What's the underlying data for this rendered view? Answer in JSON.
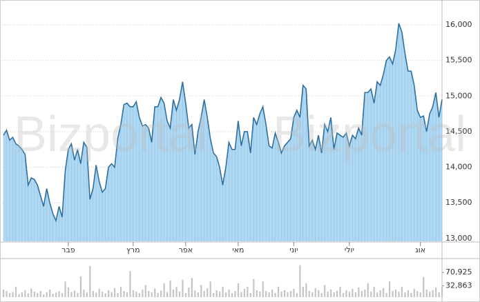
{
  "chart_data": {
    "type": "area",
    "watermark": "Bizportal",
    "values": [
      14450,
      14520,
      14380,
      14420,
      14330,
      14300,
      14250,
      14180,
      13750,
      13850,
      13830,
      13750,
      13600,
      13450,
      13700,
      13500,
      13350,
      13250,
      13450,
      13300,
      13950,
      14250,
      14330,
      14100,
      14250,
      14050,
      14350,
      14280,
      13550,
      13700,
      14030,
      13800,
      13650,
      13700,
      14000,
      14050,
      14000,
      14400,
      14600,
      14880,
      14900,
      14850,
      14850,
      14920,
      14700,
      14580,
      14600,
      14550,
      14350,
      14850,
      14850,
      14980,
      14900,
      14650,
      14550,
      14950,
      14800,
      14950,
      15200,
      14900,
      14550,
      14600,
      14180,
      14500,
      14700,
      14950,
      14700,
      14400,
      14200,
      14150,
      14000,
      13750,
      14000,
      14350,
      14250,
      14250,
      14650,
      14300,
      14500,
      14500,
      14200,
      14700,
      14600,
      14750,
      14850,
      14600,
      14300,
      14270,
      14480,
      14350,
      14200,
      14300,
      14350,
      14400,
      14700,
      14800,
      14700,
      15150,
      15100,
      14300,
      14380,
      14250,
      14450,
      14200,
      14600,
      14500,
      14700,
      14250,
      14480,
      14450,
      14420,
      14480,
      14300,
      14450,
      14400,
      14550,
      14450,
      15050,
      15050,
      15100,
      14900,
      15200,
      15150,
      15300,
      15500,
      15550,
      15450,
      15650,
      16020,
      15900,
      15600,
      15350,
      15350,
      15150,
      14800,
      14700,
      14720,
      14500,
      14750,
      14850,
      15050,
      14700,
      14950
    ],
    "color": "#2f6f9f",
    "fill": "#b0d8f2",
    "xlim": [
      0,
      142
    ],
    "xticks": [
      {
        "value": 21,
        "label": "פבר"
      },
      {
        "value": 42,
        "label": "מרץ"
      },
      {
        "value": 59,
        "label": "אפר"
      },
      {
        "value": 76,
        "label": "מאי"
      },
      {
        "value": 94,
        "label": "יוני"
      },
      {
        "value": 112,
        "label": "יולי"
      },
      {
        "value": 135,
        "label": "אוג"
      }
    ],
    "ylim": [
      12960,
      16300
    ],
    "yticks": [
      {
        "value": 13000,
        "label": "13,000"
      },
      {
        "value": 13500,
        "label": "13,500"
      },
      {
        "value": 14000,
        "label": "14,000"
      },
      {
        "value": 14500,
        "label": "14,500"
      },
      {
        "value": 15000,
        "label": "15,000"
      },
      {
        "value": 15500,
        "label": "15,500"
      },
      {
        "value": 16000,
        "label": "16,000"
      }
    ],
    "grid": true,
    "volume": {
      "color": "#c4c4c4",
      "ylim": [
        0,
        105000
      ],
      "yticks": [
        {
          "value": 70925,
          "label": "70,925"
        },
        {
          "value": 32863,
          "label": "32,863"
        }
      ],
      "values": [
        22000,
        18000,
        12000,
        15000,
        30000,
        9000,
        14000,
        20000,
        11000,
        25000,
        16000,
        12000,
        18000,
        8000,
        14000,
        22000,
        10000,
        13000,
        17000,
        12000,
        45000,
        28000,
        15000,
        19000,
        12000,
        60000,
        22000,
        14000,
        90000,
        18000,
        13000,
        24000,
        16000,
        11000,
        20000,
        15000,
        26000,
        12000,
        30000,
        18000,
        14000,
        75000,
        20000,
        16000,
        12000,
        22000,
        35000,
        18000,
        14000,
        25000,
        12000,
        19000,
        40000,
        15000,
        48000,
        22000,
        30000,
        16000,
        50000,
        12000,
        28000,
        55000,
        20000,
        14000,
        35000,
        18000,
        26000,
        45000,
        12000,
        20000,
        16000,
        30000,
        14000,
        22000,
        12000,
        18000,
        40000,
        15000,
        24000,
        30000,
        12000,
        52000,
        20000,
        16000,
        45000,
        18000,
        14000,
        22000,
        12000,
        30000,
        16000,
        20000,
        14000,
        18000,
        24000,
        12000,
        92000,
        30000,
        40000,
        18000,
        14000,
        26000,
        20000,
        12000,
        35000,
        16000,
        22000,
        14000,
        18000,
        30000,
        12000,
        20000,
        16000,
        24000,
        14000,
        28000,
        18000,
        22000,
        40000,
        16000,
        30000,
        14000,
        20000,
        26000,
        12000,
        45000,
        18000,
        22000,
        16000,
        30000,
        14000,
        20000,
        12000,
        24000,
        18000,
        14000,
        58000,
        22000,
        16000,
        20000,
        28000,
        14000,
        30000
      ]
    }
  }
}
